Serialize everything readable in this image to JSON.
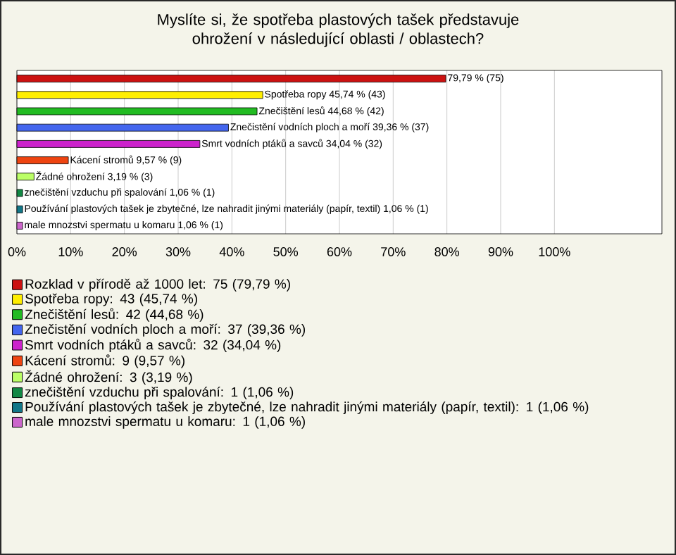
{
  "chart_data": {
    "type": "bar",
    "orientation": "horizontal",
    "title": "Myslíte si, že spotřeba plastových tašek představuje ohrožení v následující oblasti / oblastech?",
    "categories": [
      null,
      null,
      null,
      null,
      null,
      null,
      null,
      null,
      null,
      null
    ],
    "series": [
      {
        "name": "Rozklad v přírodě až 1000 let: 75 (79,79 %)",
        "color": "#cc1111",
        "values": [
          79.79,
          null,
          null,
          null,
          null,
          null,
          null,
          null,
          null,
          null
        ],
        "value_labels": [
          "79,79 % (75)",
          null,
          null,
          null,
          null,
          null,
          null,
          null,
          null,
          null
        ]
      },
      {
        "name": "Spotřeba ropy: 43 (45,74 %)",
        "color": "#ffee00",
        "values": [
          null,
          45.74,
          null,
          null,
          null,
          null,
          null,
          null,
          null,
          null
        ],
        "value_labels": [
          null,
          "Spotřeba ropy 45,74 % (43)",
          null,
          null,
          null,
          null,
          null,
          null,
          null,
          null
        ]
      },
      {
        "name": "Znečištění lesů: 42 (44,68 %)",
        "color": "#22bb22",
        "values": [
          null,
          null,
          44.68,
          null,
          null,
          null,
          null,
          null,
          null,
          null
        ],
        "value_labels": [
          null,
          null,
          "Znečištění lesů 44,68 % (42)",
          null,
          null,
          null,
          null,
          null,
          null,
          null
        ]
      },
      {
        "name": "Znečistění vodních ploch a moří: 37 (39,36 %)",
        "color": "#4466ee",
        "values": [
          null,
          null,
          null,
          39.36,
          null,
          null,
          null,
          null,
          null,
          null
        ],
        "value_labels": [
          null,
          null,
          null,
          "Znečistění vodních ploch a moří 39,36 % (37)",
          null,
          null,
          null,
          null,
          null,
          null
        ]
      },
      {
        "name": "Smrt vodních ptáků a savců: 32 (34,04 %)",
        "color": "#cc22cc",
        "values": [
          null,
          null,
          null,
          null,
          34.04,
          null,
          null,
          null,
          null,
          null
        ],
        "value_labels": [
          null,
          null,
          null,
          null,
          "Smrt vodních ptáků a savců 34,04 % (32)",
          null,
          null,
          null,
          null,
          null
        ]
      },
      {
        "name": "Kácení stromů: 9 (9,57 %)",
        "color": "#ee4411",
        "values": [
          null,
          null,
          null,
          null,
          null,
          9.57,
          null,
          null,
          null,
          null
        ],
        "value_labels": [
          null,
          null,
          null,
          null,
          null,
          "Kácení stromů 9,57 % (9)",
          null,
          null,
          null,
          null
        ]
      },
      {
        "name": "Žádné ohrožení: 3 (3,19 %)",
        "color": "#bbff66",
        "values": [
          null,
          null,
          null,
          null,
          null,
          null,
          3.19,
          null,
          null,
          null
        ],
        "value_labels": [
          null,
          null,
          null,
          null,
          null,
          null,
          "Žádné ohrožení 3,19 % (3)",
          null,
          null,
          null
        ]
      },
      {
        "name": "znečištění vzduchu při spalování: 1 (1,06 %)",
        "color": "#118844",
        "values": [
          null,
          null,
          null,
          null,
          null,
          null,
          null,
          1.06,
          null,
          null
        ],
        "value_labels": [
          null,
          null,
          null,
          null,
          null,
          null,
          null,
          "znečištění vzduchu při spalování 1,06 % (1)",
          null,
          null
        ]
      },
      {
        "name": "Používání plastových tašek je zbytečné, lze nahradit jinými materiály (papír, textil): 1 (1,06 %)",
        "color": "#117788",
        "values": [
          null,
          null,
          null,
          null,
          null,
          null,
          null,
          null,
          1.06,
          null
        ],
        "value_labels": [
          null,
          null,
          null,
          null,
          null,
          null,
          null,
          null,
          "Používání plastových tašek je zbytečné, lze nahradit jinými materiály (papír, textil) 1,06 % (1)",
          null
        ]
      },
      {
        "name": "male mnozstvi spermatu u komaru: 1 (1,06 %)",
        "color": "#cc66cc",
        "values": [
          null,
          null,
          null,
          null,
          null,
          null,
          null,
          null,
          null,
          1.06
        ],
        "value_labels": [
          null,
          null,
          null,
          null,
          null,
          null,
          null,
          null,
          null,
          "male mnozstvi spermatu u komaru 1,06 % (1)"
        ]
      }
    ],
    "xlim": [
      0,
      120
    ],
    "xticks": [
      {
        "value": 0,
        "label": "0%"
      },
      {
        "value": 10,
        "label": "10%"
      },
      {
        "value": 20,
        "label": "20%"
      },
      {
        "value": 30,
        "label": "30%"
      },
      {
        "value": 40,
        "label": "40%"
      },
      {
        "value": 50,
        "label": "50%"
      },
      {
        "value": 60,
        "label": "60%"
      },
      {
        "value": 70,
        "label": "70%"
      },
      {
        "value": 80,
        "label": "80%"
      },
      {
        "value": 90,
        "label": "90%"
      },
      {
        "value": 100,
        "label": "100%"
      }
    ],
    "grid": "x",
    "legend": "bottom"
  }
}
